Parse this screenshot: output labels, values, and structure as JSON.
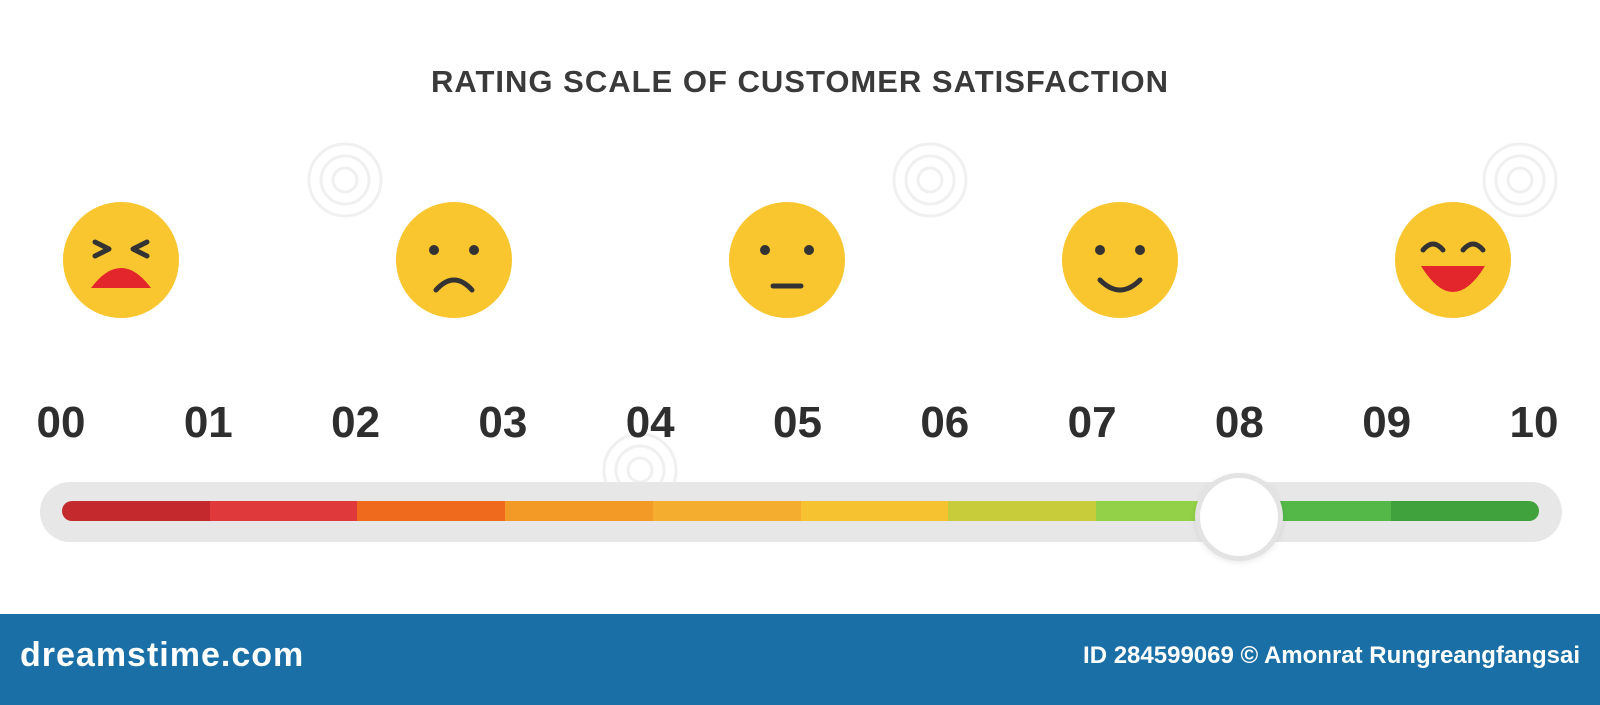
{
  "title": "RATING SCALE OF CUSTOMER SATISFACTION",
  "faces": [
    {
      "expression": "very-unhappy",
      "icon": "crying-face-icon"
    },
    {
      "expression": "sad",
      "icon": "sad-face-icon"
    },
    {
      "expression": "neutral",
      "icon": "neutral-face-icon"
    },
    {
      "expression": "smile",
      "icon": "smiling-face-icon"
    },
    {
      "expression": "very-happy",
      "icon": "laughing-face-icon"
    }
  ],
  "scale": {
    "labels": [
      "00",
      "01",
      "02",
      "03",
      "04",
      "05",
      "06",
      "07",
      "08",
      "09",
      "10"
    ],
    "selected_value": 8.0,
    "segment_colors": [
      "#c4292e",
      "#e0393b",
      "#ef6a1d",
      "#f39a26",
      "#f5ad2f",
      "#f7c230",
      "#c9cc3a",
      "#92d148",
      "#53b848",
      "#3fa23c"
    ]
  },
  "colors": {
    "face_fill": "#f9c62f",
    "mouth_red": "#e2262c",
    "track": "#e7e7e7",
    "footer": "#1a6fa6"
  },
  "footer": {
    "brand": "dreamstime.com",
    "credit": "ID 284599069 © Amonrat Rungreangfangsai"
  }
}
